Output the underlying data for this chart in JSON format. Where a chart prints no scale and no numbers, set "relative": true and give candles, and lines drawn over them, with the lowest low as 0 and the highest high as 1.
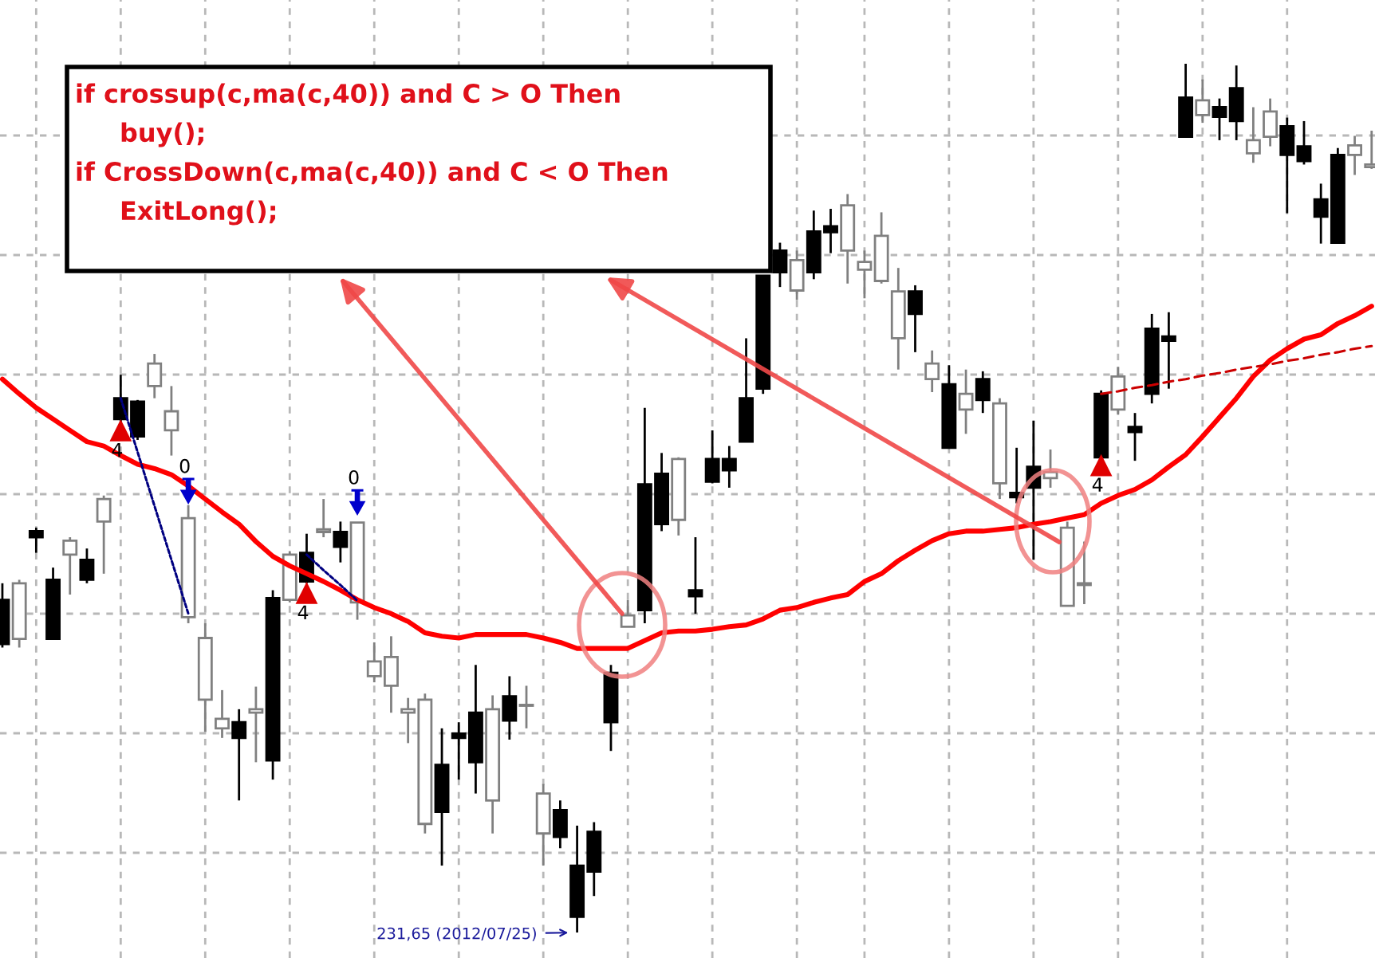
{
  "chart_data": {
    "type": "candlestick",
    "relative": true,
    "grid": true,
    "categories": [
      null,
      null,
      null,
      null,
      null,
      null,
      null,
      null,
      null,
      null,
      null,
      null,
      null,
      null,
      null,
      null,
      null,
      null,
      null,
      null,
      null,
      null,
      null,
      null,
      null,
      null,
      null,
      null,
      null,
      null,
      null,
      null,
      null,
      null,
      null,
      null,
      null,
      null,
      null,
      null,
      null,
      null,
      null,
      null,
      null,
      null,
      null,
      null,
      null,
      null,
      null,
      null,
      null,
      null,
      null,
      null,
      null,
      null,
      null,
      null,
      null,
      null,
      null,
      null,
      null,
      null,
      null,
      null,
      null,
      null,
      null,
      null,
      null,
      null,
      null,
      null,
      null,
      null,
      null,
      null,
      null,
      null
    ],
    "ohlc": [
      [
        0.383,
        0.402,
        0.328,
        0.332
      ],
      [
        0.338,
        0.406,
        0.328,
        0.402
      ],
      [
        0.462,
        0.466,
        0.437,
        0.455
      ],
      [
        0.406,
        0.42,
        0.338,
        0.338
      ],
      [
        0.435,
        0.455,
        0.389,
        0.451
      ],
      [
        0.429,
        0.442,
        0.402,
        0.406
      ],
      [
        0.473,
        0.503,
        0.413,
        0.499
      ],
      [
        0.615,
        0.642,
        0.587,
        0.591
      ],
      [
        0.611,
        0.613,
        0.567,
        0.571
      ],
      [
        0.629,
        0.666,
        0.615,
        0.655
      ],
      [
        0.578,
        0.629,
        0.549,
        0.6
      ],
      [
        0.363,
        0.492,
        0.356,
        0.477
      ],
      [
        0.268,
        0.356,
        0.231,
        0.339
      ],
      [
        0.235,
        0.279,
        0.224,
        0.246
      ],
      [
        0.242,
        0.257,
        0.152,
        0.224
      ],
      [
        0.253,
        0.283,
        0.196,
        0.257
      ],
      [
        0.385,
        0.394,
        0.176,
        0.198
      ],
      [
        0.383,
        0.439,
        0.38,
        0.435
      ],
      [
        0.437,
        0.459,
        0.402,
        0.404
      ],
      [
        0.461,
        0.499,
        0.455,
        0.464
      ],
      [
        0.461,
        0.473,
        0.426,
        0.444
      ],
      [
        0.38,
        0.472,
        0.36,
        0.472
      ],
      [
        0.295,
        0.334,
        0.288,
        0.312
      ],
      [
        0.284,
        0.341,
        0.253,
        0.317
      ],
      [
        0.253,
        0.27,
        0.218,
        0.257
      ],
      [
        0.125,
        0.275,
        0.114,
        0.268
      ],
      [
        0.193,
        0.235,
        0.077,
        0.139
      ],
      [
        0.229,
        0.242,
        0.176,
        0.224
      ],
      [
        0.253,
        0.308,
        0.16,
        0.196
      ],
      [
        0.152,
        0.273,
        0.114,
        0.257
      ],
      [
        0.272,
        0.295,
        0.222,
        0.244
      ],
      [
        0.261,
        0.284,
        0.235,
        0.262
      ],
      [
        0.114,
        0.171,
        0.077,
        0.16
      ],
      [
        0.141,
        0.152,
        0.097,
        0.11
      ],
      [
        0.077,
        0.123,
        0,
        0.018
      ],
      [
        0.116,
        0.127,
        0.042,
        0.07
      ],
      [
        0.299,
        0.308,
        0.209,
        0.242
      ],
      [
        0.352,
        0.383,
        0.352,
        0.365
      ],
      [
        0.516,
        0.604,
        0.356,
        0.371
      ],
      [
        0.528,
        0.552,
        0.462,
        0.47
      ],
      [
        0.475,
        0.547,
        0.457,
        0.545
      ],
      [
        0.394,
        0.455,
        0.367,
        0.387
      ],
      [
        0.545,
        0.578,
        0.517,
        0.519
      ],
      [
        0.545,
        0.56,
        0.512,
        0.532
      ],
      [
        0.615,
        0.684,
        0.565,
        0.565
      ],
      [
        0.756,
        0.756,
        0.62,
        0.626
      ],
      [
        0.785,
        0.794,
        0.743,
        0.76
      ],
      [
        0.739,
        0.785,
        0.728,
        0.774
      ],
      [
        0.807,
        0.831,
        0.752,
        0.76
      ],
      [
        0.813,
        0.833,
        0.782,
        0.806
      ],
      [
        0.785,
        0.85,
        0.747,
        0.837
      ],
      [
        0.763,
        0.785,
        0.73,
        0.772
      ],
      [
        0.75,
        0.829,
        0.747,
        0.802
      ],
      [
        0.684,
        0.765,
        0.648,
        0.738
      ],
      [
        0.738,
        0.745,
        0.668,
        0.712
      ],
      [
        0.637,
        0.67,
        0.622,
        0.655
      ],
      [
        0.631,
        0.653,
        0.558,
        0.558
      ],
      [
        0.602,
        0.648,
        0.574,
        0.62
      ],
      [
        0.637,
        0.646,
        0.598,
        0.613
      ],
      [
        0.517,
        0.615,
        0.499,
        0.609
      ],
      [
        0.506,
        0.558,
        0.494,
        0.501
      ],
      [
        0.536,
        0.589,
        0.429,
        0.512
      ],
      [
        0.523,
        0.556,
        0.512,
        0.53
      ],
      [
        0.376,
        0.473,
        0.376,
        0.466
      ],
      [
        0.4,
        0.45,
        0.378,
        0.402
      ],
      [
        0.62,
        0.624,
        0.547,
        0.547
      ],
      [
        0.602,
        0.651,
        0.596,
        0.64
      ],
      [
        0.582,
        0.598,
        0.543,
        0.576
      ],
      [
        0.695,
        0.712,
        0.609,
        0.62
      ],
      [
        0.686,
        0.714,
        0.626,
        0.681
      ],
      [
        0.961,
        1,
        0.916,
        0.916
      ],
      [
        0.941,
        0.982,
        0.932,
        0.958
      ],
      [
        0.95,
        0.96,
        0.912,
        0.939
      ],
      [
        0.972,
        0.998,
        0.912,
        0.934
      ],
      [
        0.897,
        0.95,
        0.886,
        0.912
      ],
      [
        0.916,
        0.96,
        0.905,
        0.945
      ],
      [
        0.928,
        0.938,
        0.828,
        0.895
      ],
      [
        0.905,
        0.934,
        0.884,
        0.888
      ],
      [
        0.844,
        0.862,
        0.793,
        0.824
      ],
      [
        0.895,
        0.903,
        0.794,
        0.794
      ],
      [
        0.895,
        0.917,
        0.872,
        0.906
      ],
      [
        0.881,
        0.923,
        0.879,
        0.884
      ]
    ],
    "series": [
      {
        "type": "line",
        "color": "#ff0000",
        "values": [
          0.637,
          0.62,
          0.604,
          0.591,
          0.578,
          0.565,
          0.56,
          0.549,
          0.539,
          0.534,
          0.527,
          0.514,
          0.499,
          0.484,
          0.47,
          0.45,
          0.433,
          0.422,
          0.413,
          0.404,
          0.394,
          0.383,
          0.374,
          0.367,
          0.358,
          0.345,
          0.341,
          0.339,
          0.343,
          0.343,
          0.343,
          0.343,
          0.339,
          0.334,
          0.327,
          0.327,
          0.327,
          0.327,
          0.336,
          0.345,
          0.347,
          0.347,
          0.349,
          0.352,
          0.354,
          0.361,
          0.371,
          0.374,
          0.38,
          0.385,
          0.389,
          0.404,
          0.413,
          0.428,
          0.44,
          0.451,
          0.459,
          0.462,
          0.462,
          0.464,
          0.466,
          0.47,
          0.473,
          0.477,
          0.481,
          0.494,
          0.503,
          0.51,
          0.521,
          0.536,
          0.55,
          0.571,
          0.593,
          0.615,
          0.64,
          0.659,
          0.672,
          0.683,
          0.688,
          0.701,
          0.71,
          0.721
        ]
      },
      {
        "type": "line",
        "color": "#cc0000",
        "line_style": "dashed",
        "values": [
          null,
          null,
          null,
          null,
          null,
          null,
          null,
          null,
          null,
          null,
          null,
          null,
          null,
          null,
          null,
          null,
          null,
          null,
          null,
          null,
          null,
          null,
          null,
          null,
          null,
          null,
          null,
          null,
          null,
          null,
          null,
          null,
          null,
          null,
          null,
          null,
          null,
          null,
          null,
          null,
          null,
          null,
          null,
          null,
          null,
          null,
          null,
          null,
          null,
          null,
          null,
          null,
          null,
          null,
          null,
          null,
          null,
          null,
          null,
          null,
          null,
          null,
          null,
          null,
          null,
          0.62,
          0.623,
          0.627,
          0.63,
          0.634,
          0.637,
          0.641,
          0.644,
          0.648,
          0.651,
          0.654,
          0.658,
          0.661,
          0.665,
          0.668,
          0.672,
          0.675
        ]
      },
      {
        "type": "line",
        "color": "#000080",
        "line_style": "dotted",
        "values": [
          null,
          null,
          null,
          null,
          null,
          null,
          null,
          0.615,
          0.553,
          0.491,
          0.429,
          0.367,
          null,
          null,
          null,
          null,
          null,
          null,
          null,
          null,
          null,
          null,
          null,
          null,
          null,
          null,
          null,
          null,
          null,
          null,
          null,
          null,
          null,
          null,
          null,
          null,
          null,
          null,
          null,
          null,
          null,
          null,
          null,
          null,
          null,
          null,
          null,
          null,
          null,
          null,
          null,
          null,
          null,
          null,
          null,
          null,
          null,
          null,
          null,
          null,
          null,
          null,
          null,
          null,
          null,
          null,
          null,
          null,
          null,
          null,
          null,
          null,
          null,
          null,
          null,
          null,
          null,
          null,
          null,
          null,
          null,
          null
        ]
      },
      {
        "type": "line",
        "color": "#000080",
        "line_style": "dotted",
        "values": [
          null,
          null,
          null,
          null,
          null,
          null,
          null,
          null,
          null,
          null,
          null,
          null,
          null,
          null,
          null,
          null,
          null,
          null,
          0.435,
          0.417,
          0.4,
          0.382,
          null,
          null,
          null,
          null,
          null,
          null,
          null,
          null,
          null,
          null,
          null,
          null,
          null,
          null,
          null,
          null,
          null,
          null,
          null,
          null,
          null,
          null,
          null,
          null,
          null,
          null,
          null,
          null,
          null,
          null,
          null,
          null,
          null,
          null,
          null,
          null,
          null,
          null,
          null,
          null,
          null,
          null,
          null,
          null,
          null,
          null,
          null,
          null,
          null,
          null,
          null,
          null,
          null,
          null,
          null,
          null,
          null,
          null,
          null,
          null
        ]
      },
      {
        "type": "scatter",
        "name": "4",
        "color": "#e00000",
        "marker": "triangle",
        "values": [
          null,
          null,
          null,
          null,
          null,
          null,
          null,
          0.578,
          null,
          null,
          null,
          null,
          null,
          null,
          null,
          null,
          null,
          null,
          0.391,
          null,
          null,
          null,
          null,
          null,
          null,
          null,
          null,
          null,
          null,
          null,
          null,
          null,
          null,
          null,
          null,
          null,
          null,
          null,
          null,
          null,
          null,
          null,
          null,
          null,
          null,
          null,
          null,
          null,
          null,
          null,
          null,
          null,
          null,
          null,
          null,
          null,
          null,
          null,
          null,
          null,
          null,
          null,
          null,
          null,
          null,
          0.538,
          null,
          null,
          null,
          null,
          null,
          null,
          null,
          null,
          null,
          null,
          null,
          null,
          null,
          null,
          null,
          null
        ]
      },
      {
        "type": "scatter",
        "name": "0",
        "color": "#0000cc",
        "marker": "triangle",
        "values": [
          null,
          null,
          null,
          null,
          null,
          null,
          null,
          null,
          null,
          null,
          null,
          0.508,
          null,
          null,
          null,
          null,
          null,
          null,
          null,
          null,
          null,
          0.495,
          null,
          null,
          null,
          null,
          null,
          null,
          null,
          null,
          null,
          null,
          null,
          null,
          null,
          null,
          null,
          null,
          null,
          null,
          null,
          null,
          null,
          null,
          null,
          null,
          null,
          null,
          null,
          null,
          null,
          null,
          null,
          null,
          null,
          null,
          null,
          null,
          null,
          null,
          null,
          null,
          null,
          null,
          null,
          null,
          null,
          null,
          null,
          null,
          null,
          null,
          null,
          null,
          null,
          null,
          null,
          null,
          null,
          null,
          null,
          null
        ]
      }
    ],
    "annotations": [
      "if crossup(c,ma(c,40)) and C > O Then\nbuy();",
      "if CrossDown(c,ma(c,40)) and C < O Then\nExitLong();",
      "231,65 (2012/07/25)"
    ]
  }
}
